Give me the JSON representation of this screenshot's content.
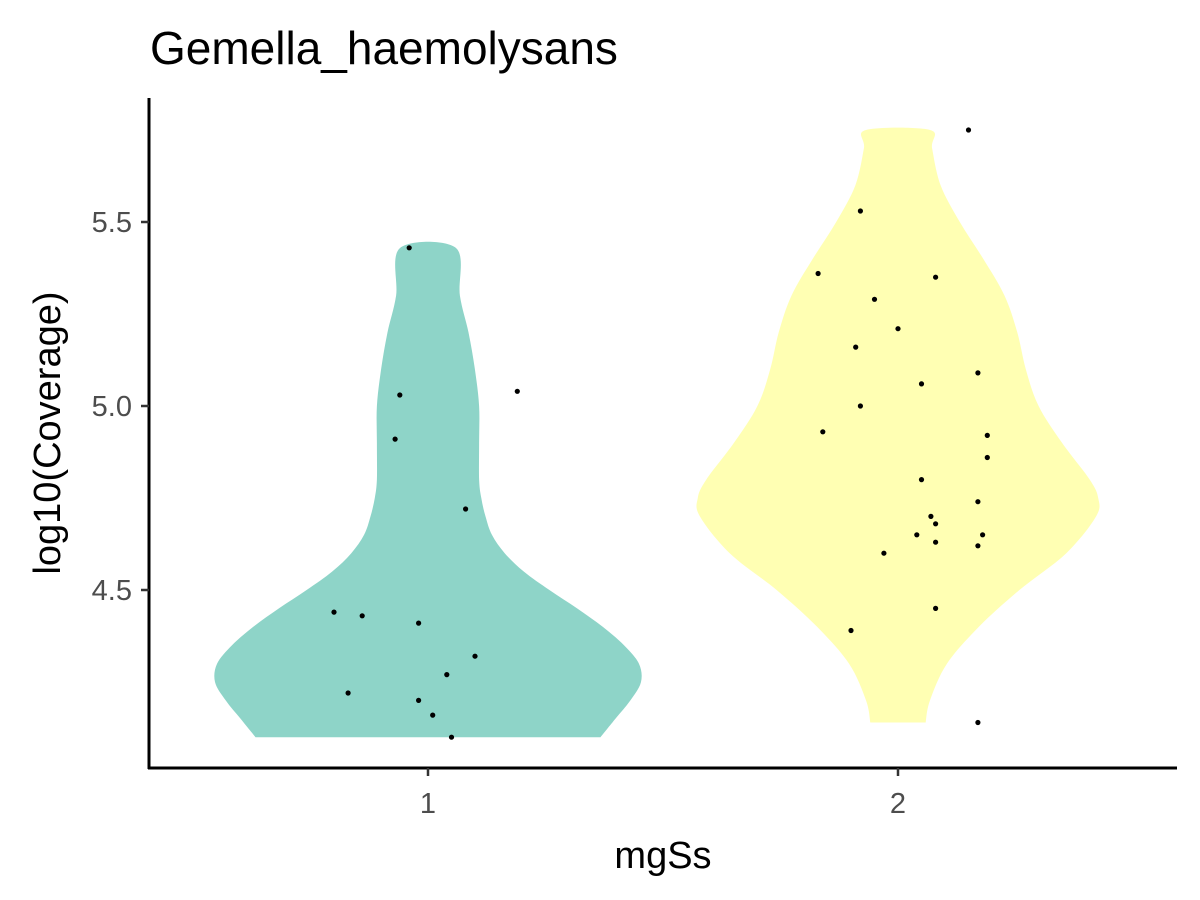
{
  "chart_data": {
    "type": "violin",
    "title": "Gemella_haemolysans",
    "xlabel": "mgSs",
    "ylabel": "log10(Coverage)",
    "categories": [
      "1",
      "2"
    ],
    "y_ticks": [
      "4.5",
      "5.0",
      "5.5"
    ],
    "y_tick_values": [
      4.5,
      5.0,
      5.5
    ],
    "ylim": [
      4.06,
      5.81
    ],
    "grid": false,
    "legend": "none",
    "series": [
      {
        "category": "1",
        "color": "#8ED4C8",
        "range": [
          4.1,
          5.43
        ],
        "density": [
          [
            4.1,
            0.81
          ],
          [
            4.15,
            0.88
          ],
          [
            4.2,
            0.95
          ],
          [
            4.25,
            1.0
          ],
          [
            4.3,
            0.99
          ],
          [
            4.35,
            0.92
          ],
          [
            4.4,
            0.82
          ],
          [
            4.45,
            0.7
          ],
          [
            4.5,
            0.57
          ],
          [
            4.55,
            0.45
          ],
          [
            4.6,
            0.36
          ],
          [
            4.65,
            0.3
          ],
          [
            4.7,
            0.27
          ],
          [
            4.75,
            0.25
          ],
          [
            4.8,
            0.24
          ],
          [
            4.9,
            0.24
          ],
          [
            5.0,
            0.24
          ],
          [
            5.1,
            0.22
          ],
          [
            5.2,
            0.19
          ],
          [
            5.3,
            0.15
          ],
          [
            5.43,
            0.13
          ]
        ],
        "points": [
          [
            0.8,
            4.44
          ],
          [
            0.86,
            4.43
          ],
          [
            0.98,
            4.41
          ],
          [
            0.83,
            4.22
          ],
          [
            0.98,
            4.2
          ],
          [
            1.01,
            4.16
          ],
          [
            1.05,
            4.1
          ],
          [
            1.04,
            4.27
          ],
          [
            1.1,
            4.32
          ],
          [
            1.08,
            4.72
          ],
          [
            0.93,
            4.91
          ],
          [
            0.94,
            5.03
          ],
          [
            1.19,
            5.04
          ],
          [
            0.96,
            5.43
          ]
        ]
      },
      {
        "category": "2",
        "color": "#FFFFB3",
        "range": [
          4.14,
          5.75
        ],
        "density": [
          [
            4.14,
            0.13
          ],
          [
            4.2,
            0.15
          ],
          [
            4.3,
            0.23
          ],
          [
            4.4,
            0.38
          ],
          [
            4.5,
            0.57
          ],
          [
            4.6,
            0.79
          ],
          [
            4.7,
            0.93
          ],
          [
            4.75,
            0.94
          ],
          [
            4.8,
            0.9
          ],
          [
            4.9,
            0.77
          ],
          [
            5.0,
            0.66
          ],
          [
            5.1,
            0.6
          ],
          [
            5.2,
            0.56
          ],
          [
            5.3,
            0.5
          ],
          [
            5.4,
            0.4
          ],
          [
            5.5,
            0.29
          ],
          [
            5.6,
            0.2
          ],
          [
            5.7,
            0.16
          ],
          [
            5.75,
            0.15
          ]
        ],
        "points": [
          [
            2.15,
            5.75
          ],
          [
            1.92,
            5.53
          ],
          [
            1.83,
            5.36
          ],
          [
            2.08,
            5.35
          ],
          [
            1.95,
            5.29
          ],
          [
            2.0,
            5.21
          ],
          [
            1.91,
            5.16
          ],
          [
            2.17,
            5.09
          ],
          [
            2.05,
            5.06
          ],
          [
            1.92,
            5.0
          ],
          [
            1.84,
            4.93
          ],
          [
            2.19,
            4.92
          ],
          [
            2.19,
            4.86
          ],
          [
            2.05,
            4.8
          ],
          [
            2.17,
            4.74
          ],
          [
            2.07,
            4.7
          ],
          [
            2.08,
            4.68
          ],
          [
            2.04,
            4.65
          ],
          [
            2.18,
            4.65
          ],
          [
            2.08,
            4.63
          ],
          [
            2.17,
            4.62
          ],
          [
            1.97,
            4.6
          ],
          [
            2.08,
            4.45
          ],
          [
            1.9,
            4.39
          ],
          [
            2.17,
            4.14
          ]
        ]
      }
    ]
  }
}
